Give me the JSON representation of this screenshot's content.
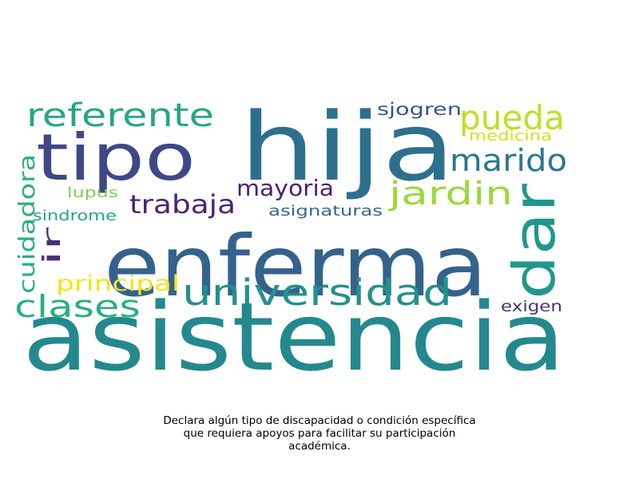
{
  "caption": "Declara algún tipo de discapacidad o condición específica\nque requiera apoyos para facilitar su participación\nacadémica.",
  "words": [
    {
      "text": "asistencia",
      "color": "#23898e",
      "orientation": "horizontal"
    },
    {
      "text": "enferma",
      "color": "#33638d",
      "orientation": "horizontal"
    },
    {
      "text": "hija",
      "color": "#2d708e",
      "orientation": "horizontal"
    },
    {
      "text": "tipo",
      "color": "#3f4788",
      "orientation": "horizontal"
    },
    {
      "text": "dar",
      "color": "#1f988b",
      "orientation": "vertical"
    },
    {
      "text": "universidad",
      "color": "#20928c",
      "orientation": "horizontal"
    },
    {
      "text": "referente",
      "color": "#22a785",
      "orientation": "horizontal"
    },
    {
      "text": "pueda",
      "color": "#bddf26",
      "orientation": "horizontal"
    },
    {
      "text": "marido",
      "color": "#2a788e",
      "orientation": "horizontal"
    },
    {
      "text": "jardin",
      "color": "#9bd93c",
      "orientation": "horizontal"
    },
    {
      "text": "clases",
      "color": "#29af7f",
      "orientation": "horizontal"
    },
    {
      "text": "trabaja",
      "color": "#482475",
      "orientation": "horizontal"
    },
    {
      "text": "mayoria",
      "color": "#481f70",
      "orientation": "horizontal"
    },
    {
      "text": "cuidadora",
      "color": "#2ab07f",
      "orientation": "vertical"
    },
    {
      "text": "principal",
      "color": "#f1e51d",
      "orientation": "horizontal"
    },
    {
      "text": "ir",
      "color": "#472d7b",
      "orientation": "vertical"
    },
    {
      "text": "sjogren",
      "color": "#3a538b",
      "orientation": "horizontal"
    },
    {
      "text": "medicina",
      "color": "#d2e21b",
      "orientation": "horizontal"
    },
    {
      "text": "asignaturas",
      "color": "#31688e",
      "orientation": "horizontal"
    },
    {
      "text": "exigen",
      "color": "#46327e",
      "orientation": "horizontal"
    },
    {
      "text": "sindrome",
      "color": "#22a884",
      "orientation": "horizontal"
    },
    {
      "text": "lupus",
      "color": "#7fd34e",
      "orientation": "horizontal"
    }
  ]
}
